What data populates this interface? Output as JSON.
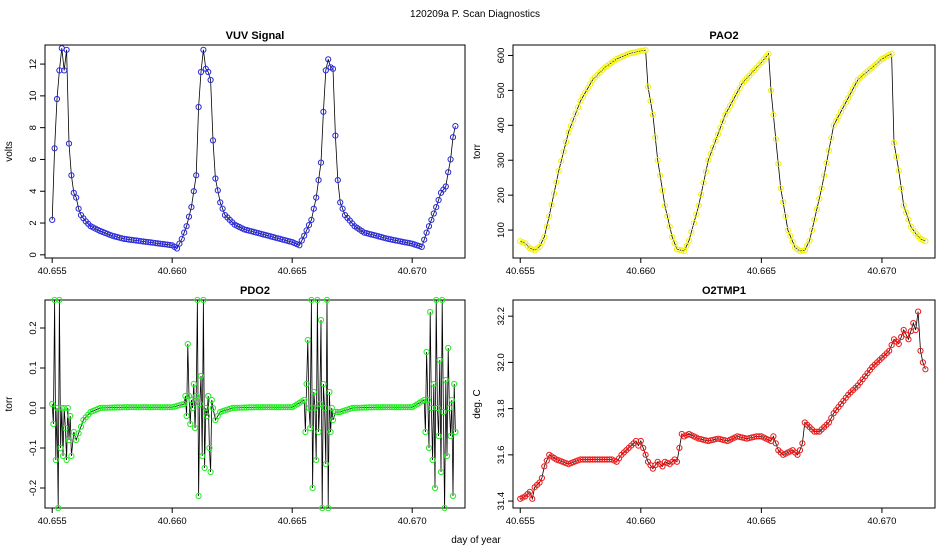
{
  "figure": {
    "title": "120209a   P. Scan Diagnostics",
    "xlabel": "day of year"
  },
  "chart_data": [
    {
      "type": "line",
      "name": "vuv",
      "title": "VUV Signal",
      "ylabel": "volts",
      "xlim": [
        40.6547,
        40.6722
      ],
      "ylim": [
        -0.2,
        13.2
      ],
      "xticks": [
        40.655,
        40.66,
        40.665,
        40.67
      ],
      "xtick_labels": [
        "40.655",
        "40.660",
        "40.665",
        "40.670"
      ],
      "yticks": [
        0,
        2,
        4,
        6,
        8,
        10,
        12
      ],
      "ytick_labels": [
        "0",
        "2",
        "4",
        "6",
        "8",
        "10",
        "12"
      ],
      "marker_color": "#2a2ae0",
      "x": [
        40.655,
        40.6551,
        40.6552,
        40.6553,
        40.6554,
        40.6555,
        40.6556,
        40.6557,
        40.6558,
        40.6559,
        40.656,
        40.6561,
        40.6562,
        40.6564,
        40.6566,
        40.657,
        40.6575,
        40.658,
        40.659,
        40.66,
        40.6602,
        40.6604,
        40.6606,
        40.6608,
        40.661,
        40.6611,
        40.6612,
        40.6613,
        40.6614,
        40.6615,
        40.6616,
        40.6617,
        40.6618,
        40.662,
        40.6622,
        40.6626,
        40.663,
        40.664,
        40.665,
        40.6653,
        40.6655,
        40.6658,
        40.666,
        40.6662,
        40.6663,
        40.6664,
        40.6665,
        40.6666,
        40.6667,
        40.6668,
        40.6669,
        40.667,
        40.6672,
        40.6676,
        40.668,
        40.669,
        40.67,
        40.6704,
        40.6706,
        40.6708,
        40.671,
        40.6712,
        40.6714,
        40.6715,
        40.6716,
        40.6717,
        40.6718
      ],
      "y": [
        2.2,
        6.7,
        9.8,
        11.6,
        13.0,
        11.6,
        12.9,
        7.0,
        5.0,
        3.9,
        3.6,
        2.9,
        2.5,
        2.1,
        1.8,
        1.5,
        1.2,
        1.0,
        0.8,
        0.6,
        0.4,
        1.0,
        1.8,
        3.0,
        5.0,
        9.3,
        11.5,
        12.9,
        11.7,
        11.5,
        11.0,
        7.2,
        4.8,
        3.3,
        2.5,
        1.9,
        1.6,
        1.2,
        0.8,
        0.6,
        1.2,
        2.2,
        3.6,
        5.8,
        9.0,
        11.6,
        12.3,
        11.8,
        11.7,
        7.5,
        4.7,
        3.3,
        2.5,
        1.8,
        1.4,
        1.0,
        0.7,
        0.5,
        1.4,
        2.2,
        3.0,
        3.9,
        4.3,
        5.2,
        6.0,
        7.4,
        8.1
      ]
    },
    {
      "type": "line",
      "name": "pao2",
      "title": "PAO2",
      "ylabel": "torr",
      "xlim": [
        40.6547,
        40.6722
      ],
      "ylim": [
        20,
        630
      ],
      "xticks": [
        40.655,
        40.66,
        40.665,
        40.67
      ],
      "xtick_labels": [
        "40.655",
        "40.660",
        "40.665",
        "40.670"
      ],
      "yticks": [
        100,
        200,
        300,
        400,
        500,
        600
      ],
      "ytick_labels": [
        "100",
        "200",
        "300",
        "400",
        "500",
        "600"
      ],
      "marker_color": "#f2f20a",
      "x": [
        40.655,
        40.6552,
        40.6554,
        40.6556,
        40.6558,
        40.656,
        40.6562,
        40.6566,
        40.657,
        40.6575,
        40.658,
        40.6585,
        40.659,
        40.6595,
        40.66,
        40.6602,
        40.6603,
        40.6605,
        40.6607,
        40.661,
        40.6613,
        40.6615,
        40.6618,
        40.662,
        40.6624,
        40.6628,
        40.6635,
        40.6642,
        40.665,
        40.6653,
        40.6654,
        40.6656,
        40.6658,
        40.6661,
        40.6664,
        40.6666,
        40.6668,
        40.667,
        40.6675,
        40.668,
        40.669,
        40.67,
        40.6704,
        40.6705,
        40.6707,
        40.6709,
        40.6712,
        40.6714,
        40.6716,
        40.6718
      ],
      "y": [
        68,
        62,
        48,
        42,
        52,
        80,
        140,
        270,
        380,
        470,
        530,
        565,
        590,
        605,
        613,
        615,
        510,
        430,
        300,
        170,
        80,
        45,
        40,
        70,
        170,
        300,
        430,
        520,
        580,
        605,
        500,
        360,
        220,
        100,
        50,
        40,
        42,
        70,
        220,
        400,
        530,
        590,
        605,
        350,
        270,
        170,
        110,
        90,
        75,
        68
      ]
    },
    {
      "type": "line",
      "name": "pdo2",
      "title": "PDO2",
      "ylabel": "torr",
      "xlim": [
        40.6547,
        40.6722
      ],
      "ylim": [
        -0.25,
        0.27
      ],
      "xticks": [
        40.655,
        40.66,
        40.665,
        40.67
      ],
      "xtick_labels": [
        "40.655",
        "40.660",
        "40.665",
        "40.670"
      ],
      "yticks": [
        -0.2,
        -0.1,
        0.0,
        0.1,
        0.2
      ],
      "ytick_labels": [
        "-0.2",
        "-0.1",
        "0.0",
        "0.1",
        "0.2"
      ],
      "marker_color": "#22ee22",
      "x": [
        40.655,
        40.65505,
        40.6551,
        40.65515,
        40.6552,
        40.65525,
        40.6553,
        40.65535,
        40.6554,
        40.65545,
        40.6555,
        40.65555,
        40.6556,
        40.65565,
        40.6557,
        40.65575,
        40.6558,
        40.6559,
        40.656,
        40.6563,
        40.6566,
        40.657,
        40.658,
        40.659,
        40.66,
        40.6605,
        40.66055,
        40.6606,
        40.66065,
        40.6607,
        40.66075,
        40.6608,
        40.66085,
        40.6609,
        40.66095,
        40.661,
        40.66105,
        40.6611,
        40.66115,
        40.6612,
        40.66125,
        40.6613,
        40.66135,
        40.6614,
        40.66145,
        40.6615,
        40.66155,
        40.6616,
        40.66165,
        40.6617,
        40.6618,
        40.662,
        40.6625,
        40.6635,
        40.665,
        40.6655,
        40.66555,
        40.6656,
        40.66565,
        40.6657,
        40.66575,
        40.6658,
        40.66585,
        40.6659,
        40.66595,
        40.666,
        40.66605,
        40.6661,
        40.66615,
        40.6662,
        40.66625,
        40.6663,
        40.66635,
        40.6664,
        40.66645,
        40.6665,
        40.66655,
        40.6666,
        40.66665,
        40.6667,
        40.6668,
        40.667,
        40.6675,
        40.6685,
        40.67,
        40.6705,
        40.67055,
        40.6706,
        40.67065,
        40.6707,
        40.67075,
        40.6708,
        40.67085,
        40.6709,
        40.67095,
        40.671,
        40.67105,
        40.6711,
        40.67115,
        40.6712,
        40.67125,
        40.6713,
        40.67135,
        40.6714,
        40.67145,
        40.6715,
        40.67155,
        40.6716,
        40.67165,
        40.6717,
        40.67175,
        40.6718
      ],
      "y": [
        0.01,
        -0.04,
        0.27,
        -0.13,
        0.0,
        -0.25,
        0.27,
        -0.1,
        0.0,
        -0.12,
        0.0,
        -0.05,
        -0.13,
        0.0,
        -0.08,
        -0.02,
        -0.12,
        -0.06,
        -0.08,
        -0.03,
        -0.01,
        0.0,
        0.002,
        0.002,
        0.002,
        0.01,
        0.03,
        -0.02,
        0.16,
        0.03,
        -0.04,
        0.02,
        0.0,
        0.06,
        -0.05,
        0.03,
        0.27,
        -0.22,
        0.01,
        0.08,
        -0.12,
        0.27,
        -0.15,
        0.0,
        -0.02,
        0.03,
        -0.1,
        -0.16,
        0.02,
        0.0,
        -0.03,
        -0.01,
        0.0,
        0.002,
        0.002,
        0.02,
        -0.06,
        0.06,
        0.17,
        0.0,
        -0.05,
        0.27,
        -0.2,
        0.04,
        0.0,
        -0.13,
        0.27,
        -0.06,
        0.01,
        0.22,
        -0.25,
        0.06,
        0.0,
        -0.14,
        0.27,
        -0.25,
        0.04,
        -0.06,
        0.0,
        -0.03,
        -0.01,
        -0.01,
        0.0,
        0.002,
        0.002,
        0.02,
        -0.06,
        0.14,
        0.02,
        -0.1,
        0.24,
        0.0,
        -0.13,
        0.06,
        -0.2,
        0.27,
        0.0,
        -0.07,
        0.12,
        -0.16,
        0.27,
        -0.01,
        -0.26,
        0.07,
        -0.12,
        0.15,
        0.0,
        -0.07,
        0.02,
        -0.22,
        0.06,
        -0.06
      ]
    },
    {
      "type": "line",
      "name": "o2tmp1",
      "title": "O2TMP1",
      "ylabel": "deg. C",
      "xlim": [
        40.6547,
        40.6722
      ],
      "ylim": [
        31.37,
        32.27
      ],
      "xticks": [
        40.655,
        40.66,
        40.665,
        40.67
      ],
      "xtick_labels": [
        "40.655",
        "40.660",
        "40.665",
        "40.670"
      ],
      "yticks": [
        31.4,
        31.6,
        31.8,
        32.0,
        32.2
      ],
      "ytick_labels": [
        "31.4",
        "31.6",
        "31.8",
        "32.0",
        "32.2"
      ],
      "marker_color": "#ee1a1a",
      "x": [
        40.655,
        40.6552,
        40.6554,
        40.6555,
        40.6556,
        40.6557,
        40.6558,
        40.6559,
        40.656,
        40.6562,
        40.6565,
        40.657,
        40.6575,
        40.658,
        40.6585,
        40.6588,
        40.659,
        40.6592,
        40.6594,
        40.6596,
        40.6598,
        40.6599,
        40.66,
        40.6601,
        40.6603,
        40.6605,
        40.6607,
        40.6609,
        40.661,
        40.6612,
        40.6614,
        40.6615,
        40.6617,
        40.6618,
        40.662,
        40.6624,
        40.6628,
        40.6632,
        40.6636,
        40.664,
        40.6644,
        40.6648,
        40.665,
        40.6652,
        40.6654,
        40.6655,
        40.6657,
        40.6659,
        40.6661,
        40.6663,
        40.6665,
        40.6666,
        40.6667,
        40.6668,
        40.667,
        40.6672,
        40.6674,
        40.6676,
        40.6678,
        40.668,
        40.6683,
        40.6686,
        40.669,
        40.6693,
        40.6696,
        40.67,
        40.6703,
        40.6705,
        40.6707,
        40.6709,
        40.6711,
        40.6713,
        40.6714,
        40.6715,
        40.6716,
        40.6717,
        40.6718
      ],
      "y": [
        31.41,
        31.42,
        31.44,
        31.41,
        31.46,
        31.47,
        31.48,
        31.5,
        31.55,
        31.6,
        31.58,
        31.56,
        31.58,
        31.58,
        31.58,
        31.58,
        31.57,
        31.6,
        31.62,
        31.64,
        31.66,
        31.64,
        31.66,
        31.63,
        31.57,
        31.54,
        31.57,
        31.55,
        31.57,
        31.56,
        31.58,
        31.57,
        31.69,
        31.68,
        31.69,
        31.67,
        31.66,
        31.67,
        31.66,
        31.68,
        31.67,
        31.68,
        31.68,
        31.67,
        31.66,
        31.68,
        31.62,
        31.6,
        31.61,
        31.62,
        31.6,
        31.62,
        31.65,
        31.74,
        31.72,
        31.7,
        31.7,
        31.72,
        31.74,
        31.78,
        31.82,
        31.86,
        31.9,
        31.94,
        31.98,
        32.02,
        32.05,
        32.1,
        32.08,
        32.14,
        32.1,
        32.17,
        32.14,
        32.22,
        32.05,
        32.0,
        31.97
      ]
    }
  ]
}
